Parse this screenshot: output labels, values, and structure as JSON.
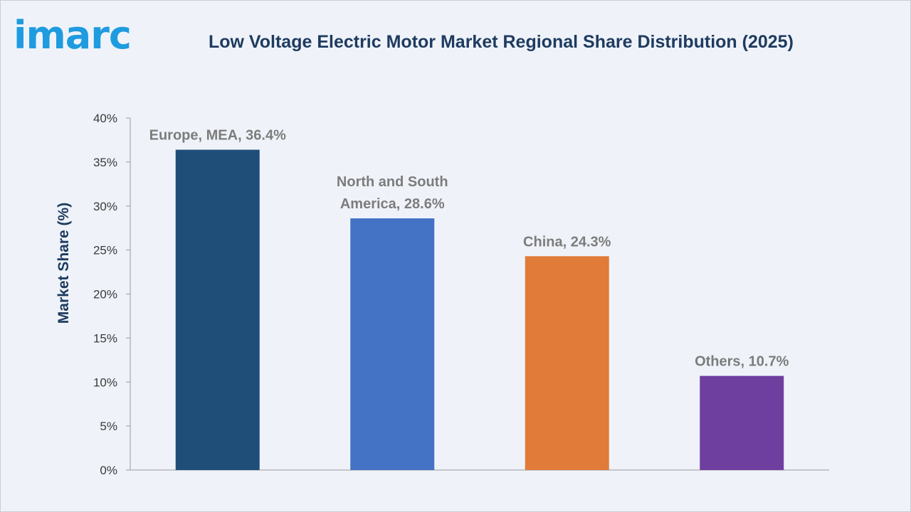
{
  "brand": {
    "logo_text": "imarc"
  },
  "chart_data": {
    "type": "bar",
    "title": "Low Voltage Electric Motor Market Regional Share Distribution (2025)",
    "ylabel": "Market Share (%)",
    "xlabel": "",
    "ylim": [
      0,
      40
    ],
    "yticks": [
      "0%",
      "5%",
      "10%",
      "15%",
      "20%",
      "25%",
      "30%",
      "35%",
      "40%"
    ],
    "categories": [
      "Europe, MEA",
      "North and South America",
      "China",
      "Others"
    ],
    "values": [
      36.4,
      28.6,
      24.3,
      10.7
    ],
    "data_labels": [
      [
        "Europe, MEA, 36.4%"
      ],
      [
        "North and South",
        "America, 28.6%"
      ],
      [
        "China, 24.3%"
      ],
      [
        "Others, 10.7%"
      ]
    ],
    "colors": [
      "#1f4e79",
      "#4472c4",
      "#e07b39",
      "#6f3fa0"
    ],
    "grid": false,
    "legend": "none"
  }
}
